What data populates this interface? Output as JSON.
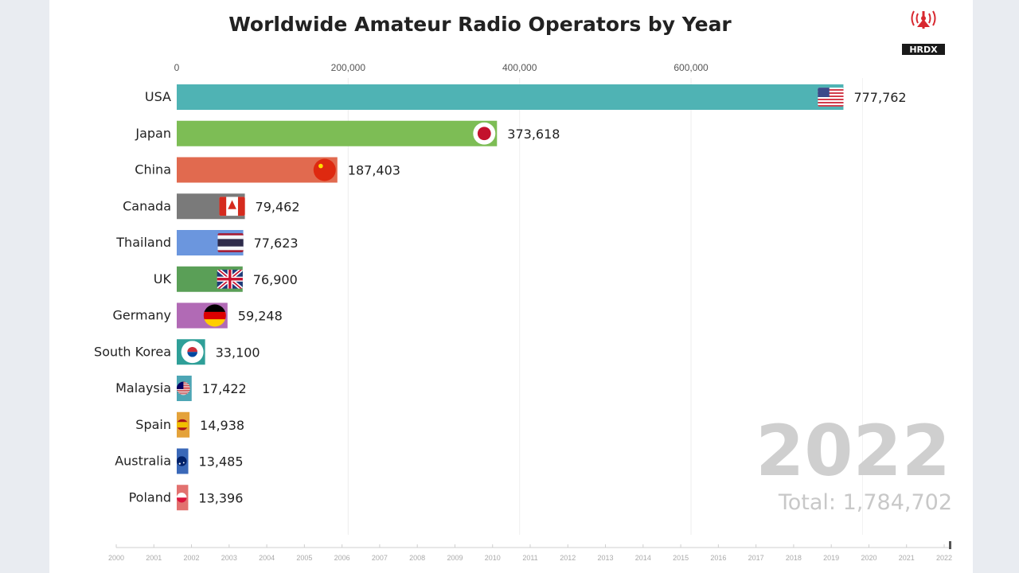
{
  "chart_data": {
    "type": "bar",
    "orientation": "horizontal",
    "title": "Worldwide Amateur Radio Operators by Year",
    "categories": [
      "USA",
      "Japan",
      "China",
      "Canada",
      "Thailand",
      "UK",
      "Germany",
      "South Korea",
      "Malaysia",
      "Spain",
      "Australia",
      "Poland"
    ],
    "values": [
      777762,
      373618,
      187403,
      79462,
      77623,
      76900,
      59248,
      33100,
      17422,
      14938,
      13485,
      13396
    ],
    "value_labels": [
      "777,762",
      "373,618",
      "187,403",
      "79,462",
      "77,623",
      "76,900",
      "59,248",
      "33,100",
      "17,422",
      "14,938",
      "13,485",
      "13,396"
    ],
    "bar_colors": [
      "#4fb3b4",
      "#7dbd55",
      "#e16a4f",
      "#7a7a7a",
      "#6b96de",
      "#5a9f57",
      "#b16ab5",
      "#2f9f98",
      "#4da6b5",
      "#e4a23a",
      "#3a68b8",
      "#e2716f"
    ],
    "flags": [
      "us-flag-icon",
      "japan-flag-icon",
      "china-flag-icon",
      "canada-flag-icon",
      "thailand-flag-icon",
      "uk-flag-icon",
      "germany-flag-icon",
      "south-korea-flag-icon",
      "malaysia-flag-icon",
      "spain-flag-icon",
      "australia-flag-icon",
      "poland-flag-icon"
    ],
    "x_ticks": [
      0,
      200000,
      400000,
      600000
    ],
    "x_tick_labels": [
      "0",
      "200,000",
      "400,000",
      "600,000"
    ],
    "xlim": [
      0,
      860000
    ],
    "grid": true,
    "year": "2022",
    "total_label": "Total: 1,784,702",
    "timeline_labels": [
      "2000",
      "2001",
      "2002",
      "2003",
      "2004",
      "2005",
      "2006",
      "2007",
      "2008",
      "2009",
      "2010",
      "2011",
      "2012",
      "2013",
      "2014",
      "2015",
      "2016",
      "2017",
      "2018",
      "2019",
      "2020",
      "2021",
      "2022"
    ]
  },
  "logo": {
    "text": "HRDX",
    "icon": "radio-tower-icon",
    "color": "#d8282f"
  }
}
